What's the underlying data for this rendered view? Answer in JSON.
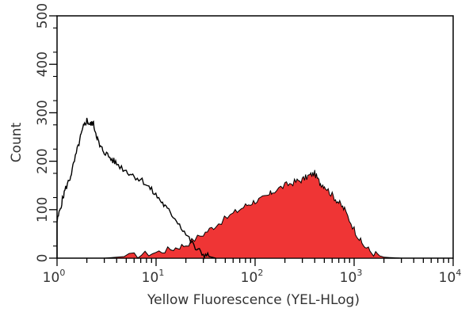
{
  "chart_data": {
    "type": "area",
    "title": "",
    "xlabel": "Yellow Fluorescence (YEL-HLog)",
    "ylabel": "Count",
    "x_scale": "log",
    "xlim": [
      1,
      10000
    ],
    "ylim": [
      0,
      500
    ],
    "grid": false,
    "legend": "none",
    "x_ticks": [
      {
        "base": "10",
        "exp": "0",
        "value": 1
      },
      {
        "base": "10",
        "exp": "1",
        "value": 10
      },
      {
        "base": "10",
        "exp": "2",
        "value": 100
      },
      {
        "base": "10",
        "exp": "3",
        "value": 1000
      },
      {
        "base": "10",
        "exp": "4",
        "value": 10000
      }
    ],
    "y_ticks": [
      "0",
      "100",
      "200",
      "300",
      "400",
      "500"
    ],
    "series": [
      {
        "style": "outline",
        "color": "#000000",
        "x": [
          1.0,
          1.1,
          1.2,
          1.35,
          1.5,
          1.7,
          1.85,
          2.0,
          2.15,
          2.3,
          2.5,
          2.7,
          3.0,
          3.5,
          4.0,
          5.0,
          6.0,
          7.5,
          9.0,
          11,
          13,
          16,
          20,
          25,
          30,
          35,
          40
        ],
        "y": [
          75,
          110,
          140,
          165,
          200,
          245,
          270,
          285,
          275,
          280,
          255,
          230,
          220,
          205,
          195,
          180,
          170,
          158,
          140,
          120,
          100,
          80,
          50,
          20,
          8,
          3,
          0
        ]
      },
      {
        "style": "filled",
        "color": "#ee2a2a",
        "x": [
          3,
          6,
          10,
          15,
          20,
          30,
          40,
          60,
          80,
          100,
          130,
          150,
          200,
          250,
          300,
          350,
          400,
          450,
          500,
          600,
          700,
          800,
          1000,
          1200,
          1500,
          2000,
          3000
        ],
        "y": [
          0,
          5,
          12,
          20,
          28,
          50,
          68,
          92,
          108,
          118,
          125,
          137,
          150,
          157,
          162,
          170,
          175,
          155,
          150,
          130,
          115,
          100,
          60,
          30,
          12,
          2,
          0
        ]
      }
    ]
  }
}
